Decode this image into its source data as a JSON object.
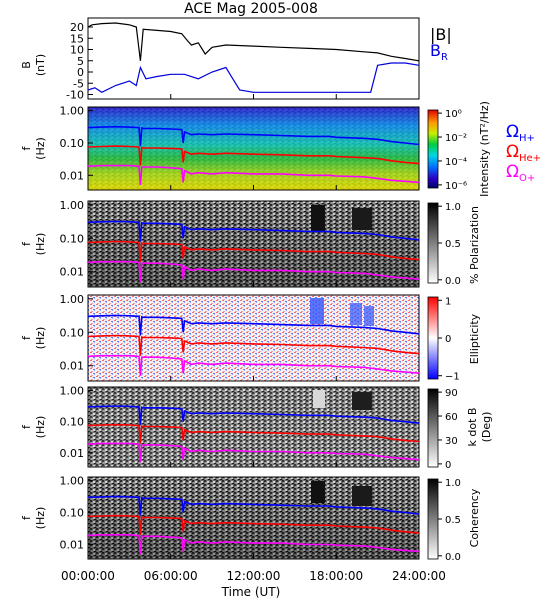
{
  "chart_data": {
    "type": "multi-panel",
    "title": "ACE Mag 2005-008",
    "xlabel": "Time (UT)",
    "x_ticks": [
      "00:00:00",
      "06:00:00",
      "12:00:00",
      "18:00:00",
      "24:00:00"
    ],
    "xlim_hours": [
      0,
      24
    ],
    "panels": [
      {
        "type": "line",
        "ylabel": [
          "B",
          "(nT)"
        ],
        "ylim": [
          -12,
          24
        ],
        "y_ticks": [
          "20",
          "15",
          "10",
          "5",
          "0",
          "-5",
          "-10"
        ],
        "series": [
          {
            "name": "|B|",
            "color": "#000000",
            "x": [
              0,
              0.3,
              1,
              2,
              3,
              3.5,
              3.8,
              4,
              5,
              6,
              6.8,
              7.2,
              7.5,
              8,
              8.5,
              9,
              10,
              12,
              14,
              16,
              18,
              20,
              21,
              22,
              23,
              24
            ],
            "y": [
              20,
              21,
              21.5,
              21.8,
              21,
              20,
              5,
              19,
              18.5,
              18,
              17,
              14,
              12,
              13,
              8,
              11,
              12,
              11.5,
              11,
              10.5,
              10,
              9,
              8.5,
              7,
              6,
              5
            ]
          },
          {
            "name": "B_R",
            "color": "#0000dd",
            "x": [
              0,
              0.5,
              1,
              2,
              3,
              3.5,
              3.8,
              4.2,
              5,
              6,
              7,
              8,
              9,
              10,
              10.5,
              11,
              12,
              14,
              16,
              18,
              20,
              20.5,
              21,
              22,
              23,
              24
            ],
            "y": [
              -8,
              -7,
              -9,
              -6,
              -4,
              -6,
              2,
              -3,
              -2,
              -1,
              -1,
              -3,
              0,
              2,
              -3,
              -8,
              -9,
              -9,
              -9,
              -9,
              -9,
              -9,
              3,
              4,
              4,
              3
            ]
          }
        ]
      },
      {
        "type": "heatmap",
        "ylabel": [
          "f",
          "(Hz)"
        ],
        "y_ticks": [
          "1.00",
          "0.10",
          "0.01"
        ],
        "colorbar": {
          "label": "Intensity (nT²/Hz)",
          "ticks": [
            "10⁰",
            "10⁻²",
            "10⁻⁴",
            "10⁻⁶"
          ]
        }
      },
      {
        "type": "heatmap",
        "ylabel": [
          "f",
          "(Hz)"
        ],
        "y_ticks": [
          "1.00",
          "0.10",
          "0.01"
        ],
        "colorbar": {
          "label": "% Polarization",
          "ticks": [
            "1.0",
            "0.5",
            "0.0"
          ]
        }
      },
      {
        "type": "heatmap",
        "ylabel": [
          "f",
          "(Hz)"
        ],
        "y_ticks": [
          "1.00",
          "0.10",
          "0.01"
        ],
        "colorbar": {
          "label": "Ellipticity",
          "ticks": [
            "1",
            "0",
            "−1"
          ]
        }
      },
      {
        "type": "heatmap",
        "ylabel": [
          "f",
          "(Hz)"
        ],
        "y_ticks": [
          "1.00",
          "0.10",
          "0.01"
        ],
        "colorbar": {
          "label": "k dot B",
          "label2": "(Deg)",
          "ticks": [
            "90",
            "60",
            "30",
            "0"
          ]
        }
      },
      {
        "type": "heatmap",
        "ylabel": [
          "f",
          "(Hz)"
        ],
        "y_ticks": [
          "1.00",
          "0.10",
          "0.01"
        ],
        "colorbar": {
          "label": "Coherency",
          "ticks": [
            "1.0",
            "0.5",
            "0.0"
          ]
        }
      }
    ],
    "gyrofrequency_lines": {
      "x": [
        0,
        1,
        2,
        3,
        3.7,
        3.8,
        3.9,
        4,
        5,
        6,
        6.8,
        6.9,
        7,
        7.5,
        8,
        9,
        10,
        12,
        14,
        16,
        17.5,
        18,
        20,
        21,
        22,
        23,
        24
      ],
      "H+": [
        0.3,
        0.31,
        0.32,
        0.31,
        0.3,
        0.08,
        0.29,
        0.28,
        0.28,
        0.27,
        0.26,
        0.1,
        0.22,
        0.18,
        0.19,
        0.18,
        0.19,
        0.18,
        0.17,
        0.16,
        0.16,
        0.15,
        0.14,
        0.13,
        0.11,
        0.1,
        0.09
      ],
      "He+": [
        0.075,
        0.078,
        0.08,
        0.078,
        0.075,
        0.02,
        0.072,
        0.07,
        0.07,
        0.068,
        0.065,
        0.025,
        0.055,
        0.045,
        0.048,
        0.045,
        0.048,
        0.045,
        0.043,
        0.04,
        0.04,
        0.038,
        0.035,
        0.033,
        0.028,
        0.025,
        0.023
      ],
      "O+": [
        0.019,
        0.02,
        0.02,
        0.02,
        0.019,
        0.005,
        0.018,
        0.018,
        0.018,
        0.017,
        0.016,
        0.006,
        0.014,
        0.011,
        0.012,
        0.011,
        0.012,
        0.011,
        0.011,
        0.01,
        0.01,
        0.0095,
        0.009,
        0.008,
        0.007,
        0.0065,
        0.006
      ]
    },
    "legend_labels": {
      "H": "Ω",
      "H_sub": "H+",
      "He": "Ω",
      "He_sub": "He+",
      "O": "Ω",
      "O_sub": "O+"
    },
    "colors": {
      "H+": "#0000ff",
      "He+": "#ff0000",
      "O+": "#ff00ff",
      "B_R": "#0000dd",
      "absB": "#000000"
    }
  }
}
